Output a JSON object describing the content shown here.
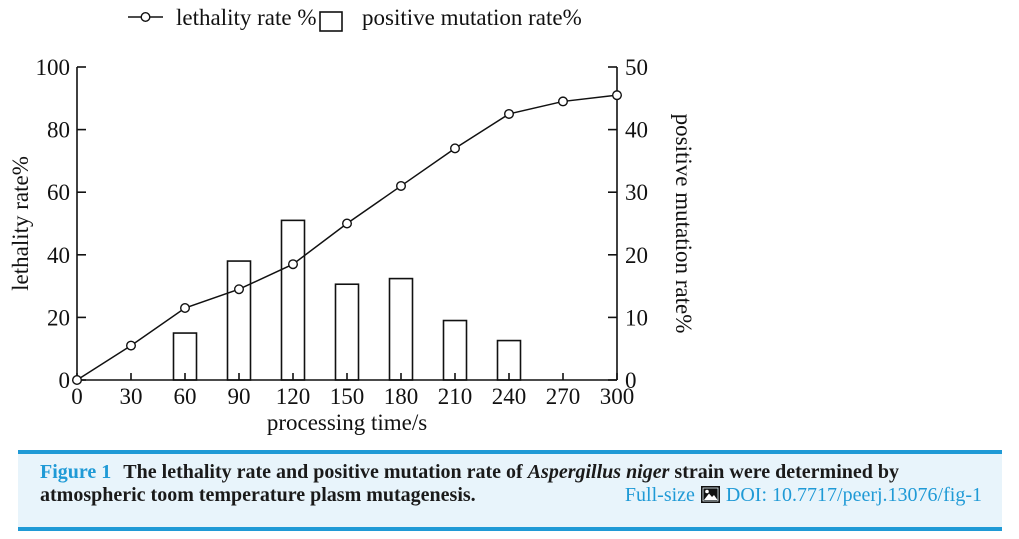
{
  "legend": {
    "line_label": "lethality rate %",
    "bar_label": "positive mutation rate%"
  },
  "chart_data": {
    "type": "line+bar",
    "xlabel": "processing time/s",
    "ylabel_left": "lethality rate%",
    "ylabel_right": "positive mutation rate%",
    "xlim": [
      0,
      300
    ],
    "ylim_left": [
      0,
      100
    ],
    "ylim_right": [
      0,
      50
    ],
    "xticks": [
      0,
      30,
      60,
      90,
      120,
      150,
      180,
      210,
      240,
      270,
      300
    ],
    "yticks_left": [
      0,
      20,
      40,
      60,
      80,
      100
    ],
    "yticks_right": [
      0,
      10,
      20,
      30,
      40,
      50
    ],
    "grid": false,
    "legend_position": "top-left",
    "series": [
      {
        "name": "lethality rate %",
        "type": "line",
        "axis": "left",
        "marker": "open-circle",
        "x": [
          0,
          30,
          60,
          90,
          120,
          150,
          180,
          210,
          240,
          270,
          300
        ],
        "values": [
          0,
          11,
          23,
          29,
          37,
          50,
          62,
          74,
          85,
          89,
          91
        ]
      },
      {
        "name": "positive mutation rate%",
        "type": "bar",
        "axis": "right",
        "fill": "white",
        "x": [
          60,
          90,
          120,
          150,
          180,
          210,
          240
        ],
        "values": [
          7.5,
          19,
          25.5,
          15.3,
          16.2,
          9.5,
          6.3
        ]
      }
    ]
  },
  "caption": {
    "label": "Figure 1",
    "line1_pre_italic": "The lethality rate and positive mutation rate of ",
    "line1_italic": "Aspergillus niger",
    "line1_post_italic": " strain were determined by",
    "line2": "atmospheric toom temperature plasm mutagenesis.",
    "fullsize": "Full-size",
    "doi": "DOI: 10.7717/peerj.13076/fig-1"
  },
  "icons": {
    "full_size": "image-icon"
  },
  "colors": {
    "link": "#1f9ad6",
    "rule": "#1f9ad6",
    "band_bg": "#e8f4fb",
    "chart_ink": "#111111"
  }
}
